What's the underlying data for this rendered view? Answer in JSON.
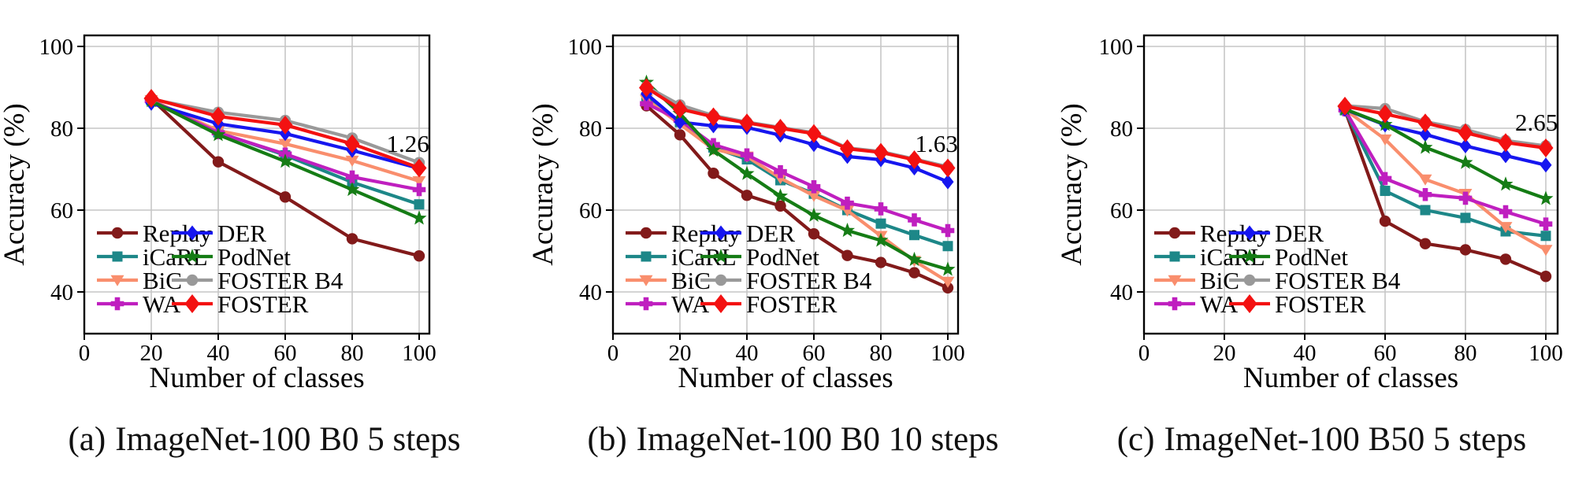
{
  "figure": {
    "xlabel": "Number of classes",
    "ylabel": "Accuracy (%)",
    "colors": {
      "Replay": "#821a1a",
      "iCaRL": "#1d8788",
      "BiC": "#f98e6d",
      "WA": "#bf1fbf",
      "DER": "#1616ef",
      "PodNet": "#157c15",
      "FOSTER B4": "#999999",
      "FOSTER": "#f31111",
      "grid": "#c6c6c6",
      "spine": "#000000"
    },
    "markers": {
      "Replay": "circle",
      "iCaRL": "square",
      "BiC": "triangle-down",
      "WA": "plus",
      "DER": "diamond",
      "PodNet": "star",
      "FOSTER B4": "circle",
      "FOSTER": "diamond-large"
    },
    "legend_columns": [
      [
        "Replay",
        "iCaRL",
        "BiC",
        "WA"
      ],
      [
        "DER",
        "PodNet",
        "FOSTER B4",
        "FOSTER"
      ]
    ]
  },
  "panels": [
    {
      "caption_label": "(a)",
      "caption_text": "ImageNet-100 B0 5 steps"
    },
    {
      "caption_label": "(b)",
      "caption_text": "ImageNet-100 B0 10 steps"
    },
    {
      "caption_label": "(c)",
      "caption_text": "ImageNet-100 B50 5 steps"
    }
  ],
  "chart_data": [
    {
      "type": "line",
      "title": "(a) ImageNet-100 B0 5 steps",
      "xlabel": "Number of classes",
      "ylabel": "Accuracy (%)",
      "xticks": [
        0,
        20,
        40,
        60,
        80,
        100
      ],
      "yticks": [
        40,
        60,
        80,
        100
      ],
      "xlim": [
        0,
        103
      ],
      "ylim": [
        29.8,
        102.7
      ],
      "grid": true,
      "legend_position": "lower left",
      "annotation": {
        "text": "1.26",
        "x": 103,
        "y": 76.3
      },
      "x": [
        20,
        40,
        60,
        80,
        100
      ],
      "series": [
        {
          "name": "Replay",
          "values": [
            87.2,
            71.8,
            63.2,
            53.0,
            48.8
          ]
        },
        {
          "name": "iCaRL",
          "values": [
            86.8,
            79.0,
            73.4,
            66.8,
            61.4
          ]
        },
        {
          "name": "BiC",
          "values": [
            86.9,
            79.4,
            76.2,
            72.1,
            67.1
          ]
        },
        {
          "name": "WA",
          "values": [
            86.8,
            78.9,
            73.7,
            68.1,
            65.0
          ]
        },
        {
          "name": "DER",
          "values": [
            86.1,
            81.1,
            78.7,
            74.6,
            70.2
          ]
        },
        {
          "name": "PodNet",
          "values": [
            86.7,
            78.4,
            71.9,
            65.0,
            58.0
          ]
        },
        {
          "name": "FOSTER B4",
          "values": [
            87.1,
            83.9,
            81.9,
            77.6,
            71.6
          ]
        },
        {
          "name": "FOSTER",
          "values": [
            87.3,
            82.9,
            80.8,
            76.2,
            70.3
          ]
        }
      ]
    },
    {
      "type": "line",
      "title": "(b) ImageNet-100 B0 10 steps",
      "xlabel": "Number of classes",
      "ylabel": "Accuracy (%)",
      "xticks": [
        0,
        20,
        40,
        60,
        80,
        100
      ],
      "yticks": [
        40,
        60,
        80,
        100
      ],
      "xlim": [
        0,
        103
      ],
      "ylim": [
        29.8,
        102.7
      ],
      "grid": true,
      "legend_position": "lower left",
      "annotation": {
        "text": "1.63",
        "x": 103,
        "y": 76.3
      },
      "x": [
        10,
        20,
        30,
        40,
        50,
        60,
        70,
        80,
        90,
        100
      ],
      "series": [
        {
          "name": "Replay",
          "values": [
            85.5,
            78.4,
            69.0,
            63.6,
            61.0,
            54.2,
            48.9,
            47.2,
            44.7,
            41.0
          ]
        },
        {
          "name": "iCaRL",
          "values": [
            87.6,
            81.5,
            75.3,
            72.4,
            67.3,
            64.0,
            60.0,
            56.7,
            53.9,
            51.2
          ]
        },
        {
          "name": "BiC",
          "values": [
            87.0,
            81.0,
            74.9,
            73.1,
            67.8,
            63.5,
            59.9,
            53.7,
            47.6,
            42.5
          ]
        },
        {
          "name": "WA",
          "values": [
            86.0,
            82.0,
            76.0,
            73.5,
            69.4,
            65.7,
            61.7,
            60.3,
            57.6,
            55.0
          ]
        },
        {
          "name": "DER",
          "values": [
            88.4,
            81.5,
            80.6,
            80.2,
            78.3,
            76.0,
            73.1,
            72.3,
            70.3,
            66.9
          ]
        },
        {
          "name": "PodNet",
          "values": [
            91.2,
            83.6,
            74.6,
            68.9,
            63.4,
            58.7,
            55.0,
            52.6,
            47.9,
            45.5
          ]
        },
        {
          "name": "FOSTER B4",
          "values": [
            90.2,
            85.7,
            83.1,
            81.5,
            80.2,
            78.9,
            75.2,
            74.3,
            72.5,
            70.6
          ]
        },
        {
          "name": "FOSTER",
          "values": [
            89.9,
            84.7,
            82.8,
            81.3,
            80.0,
            78.7,
            75.0,
            74.1,
            72.3,
            70.3
          ]
        }
      ]
    },
    {
      "type": "line",
      "title": "(c) ImageNet-100 B50 5 steps",
      "xlabel": "Number of classes",
      "ylabel": "Accuracy (%)",
      "xticks": [
        0,
        20,
        40,
        60,
        80,
        100
      ],
      "yticks": [
        40,
        60,
        80,
        100
      ],
      "xlim": [
        0,
        103
      ],
      "ylim": [
        29.8,
        102.7
      ],
      "grid": true,
      "legend_position": "lower left",
      "annotation": {
        "text": "2.65",
        "x": 103,
        "y": 81.5
      },
      "x": [
        50,
        60,
        70,
        80,
        90,
        100
      ],
      "series": [
        {
          "name": "Replay",
          "values": [
            84.5,
            57.3,
            51.8,
            50.3,
            48.0,
            43.8
          ]
        },
        {
          "name": "iCaRL",
          "values": [
            84.4,
            64.7,
            60.0,
            58.1,
            54.8,
            53.7
          ]
        },
        {
          "name": "BiC",
          "values": [
            84.6,
            77.3,
            67.5,
            64.0,
            55.9,
            50.3
          ]
        },
        {
          "name": "WA",
          "values": [
            84.5,
            67.7,
            63.8,
            62.9,
            59.6,
            56.6
          ]
        },
        {
          "name": "DER",
          "values": [
            84.6,
            80.8,
            78.5,
            75.7,
            73.3,
            71.0
          ]
        },
        {
          "name": "PodNet",
          "values": [
            84.7,
            80.9,
            75.3,
            71.6,
            66.3,
            62.8
          ]
        },
        {
          "name": "FOSTER B4",
          "values": [
            85.5,
            84.8,
            81.6,
            79.7,
            77.0,
            75.7
          ]
        },
        {
          "name": "FOSTER",
          "values": [
            85.4,
            83.5,
            81.3,
            78.9,
            76.5,
            75.2
          ]
        }
      ]
    }
  ]
}
